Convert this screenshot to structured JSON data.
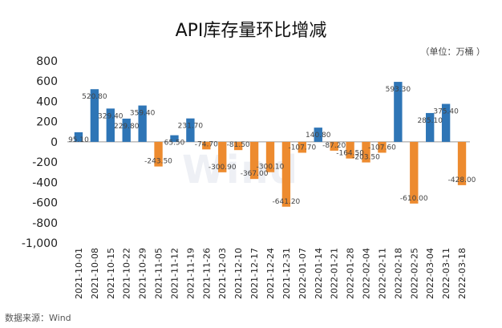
{
  "source_text": "数据来源：Wind",
  "watermark_text": "Wind",
  "colors": {
    "positive": "#2e75b6",
    "negative": "#ed8b2f",
    "baseline": "#999999",
    "text": "#222222"
  },
  "chart_data": {
    "type": "bar",
    "title": "API库存量环比增减",
    "unit_label": "（单位：万桶 ）",
    "xlabel": "",
    "ylabel": "",
    "ylim": [
      -1000,
      800
    ],
    "yticks": [
      800,
      600,
      400,
      200,
      0,
      -200,
      -400,
      -600,
      -800,
      -1000
    ],
    "ytick_labels": [
      "800",
      "600",
      "400",
      "200",
      "0",
      "-200",
      "-400",
      "-600",
      "-800",
      "-1,000"
    ],
    "grid": false,
    "legend": "none",
    "categories": [
      "2021-10-01",
      "2021-10-08",
      "2021-10-15",
      "2021-10-22",
      "2021-10-29",
      "2021-11-05",
      "2021-11-12",
      "2021-11-19",
      "2021-11-26",
      "2021-12-03",
      "2021-12-10",
      "2021-12-17",
      "2021-12-24",
      "2021-12-31",
      "2022-01-07",
      "2022-01-14",
      "2022-01-21",
      "2022-01-28",
      "2022-02-04",
      "2022-02-11",
      "2022-02-18",
      "2022-02-25",
      "2022-03-04",
      "2022-03-11",
      "2022-03-18"
    ],
    "values": [
      95.1,
      520.8,
      329.4,
      229.8,
      359.4,
      -243.5,
      65.5,
      231.7,
      -74.7,
      -300.9,
      -81.5,
      -367,
      -300.1,
      -641.2,
      -107.7,
      140.8,
      -87.2,
      -164.5,
      -203.5,
      -107.6,
      593.3,
      -610,
      285.1,
      375.4,
      -428
    ],
    "data_labels": [
      "95.10",
      "520.80",
      "329.40",
      "229.80",
      "359.40",
      "-243.50",
      "65.50",
      "231.70",
      "-74.70",
      "-300.90",
      "-81.50",
      "-367.00",
      "-300.10",
      "-641.20",
      "-107.70",
      "140.80",
      "-87.20",
      "-164.50",
      "-203.50",
      "-107.60",
      "593.30",
      "-610.00",
      "285.10",
      "375.40",
      "-428.00"
    ]
  }
}
